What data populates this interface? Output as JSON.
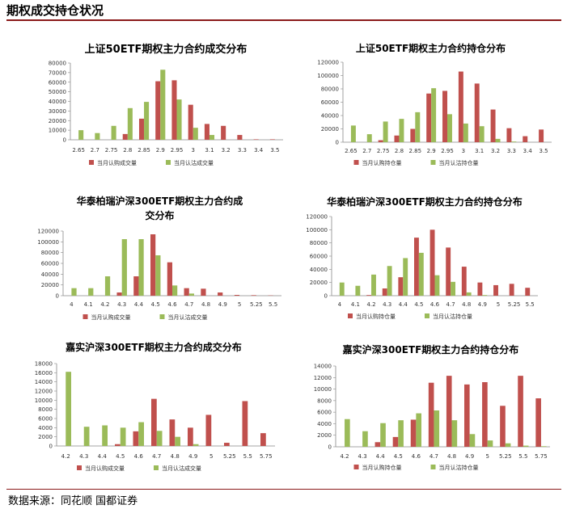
{
  "header": {
    "title": "期权成交持仓状况"
  },
  "footer": {
    "source": "数据来源：同花顺  国都证券"
  },
  "colors": {
    "call": "#c0504d",
    "put": "#9bbb59",
    "accent": "#8b1a1a"
  },
  "chart_data": [
    {
      "type": "bar",
      "title": "上证50ETF期权主力合约成交分布",
      "categories": [
        "2.65",
        "2.7",
        "2.75",
        "2.8",
        "2.85",
        "2.9",
        "2.95",
        "3",
        "3.1",
        "3.2",
        "3.3",
        "3.4",
        "3.5"
      ],
      "ylim": [
        0,
        80000
      ],
      "yticks": [
        0,
        10000,
        20000,
        30000,
        40000,
        50000,
        60000,
        70000,
        80000
      ],
      "series": [
        {
          "name": "当月认购成交量",
          "values": [
            0,
            0,
            0,
            6000,
            22000,
            61000,
            62000,
            36500,
            16500,
            14500,
            5000,
            500,
            500
          ]
        },
        {
          "name": "当月认沽成交量",
          "values": [
            10000,
            7000,
            14500,
            33000,
            39500,
            73000,
            42000,
            12500,
            5000,
            0,
            0,
            0,
            0
          ]
        }
      ]
    },
    {
      "type": "bar",
      "title": "上证50ETF期权主力合约持仓分布",
      "categories": [
        "2.65",
        "2.7",
        "2.75",
        "2.8",
        "2.85",
        "2.9",
        "2.95",
        "3",
        "3.1",
        "3.2",
        "3.3",
        "3.4",
        "3.5"
      ],
      "ylim": [
        0,
        120000
      ],
      "yticks": [
        0,
        20000,
        40000,
        60000,
        80000,
        100000,
        120000
      ],
      "series": [
        {
          "name": "当月认购持仓量",
          "values": [
            0,
            0,
            3000,
            10000,
            20000,
            73000,
            77000,
            106000,
            88000,
            49000,
            21000,
            9000,
            19000
          ]
        },
        {
          "name": "当月认沽持仓量",
          "values": [
            25000,
            12000,
            31000,
            35000,
            45000,
            81000,
            42000,
            28000,
            24000,
            5000,
            1000,
            0,
            0
          ]
        }
      ]
    },
    {
      "type": "bar",
      "title": "华泰柏瑞沪深300ETF期权主力合约成交分布",
      "title_lines": [
        "华泰柏瑞沪深300ETF期权主力合约成",
        "交分布"
      ],
      "categories": [
        "4",
        "4.1",
        "4.2",
        "4.3",
        "4.4",
        "4.5",
        "4.6",
        "4.7",
        "4.8",
        "4.9",
        "5",
        "5.25",
        "5.5"
      ],
      "ylim": [
        0,
        120000
      ],
      "yticks": [
        0,
        20000,
        40000,
        60000,
        80000,
        100000,
        120000
      ],
      "series": [
        {
          "name": "当月认购成交量",
          "values": [
            0,
            0,
            0,
            6000,
            36000,
            114000,
            62000,
            14000,
            13000,
            6000,
            1500,
            1000,
            500
          ]
        },
        {
          "name": "当月认沽成交量",
          "values": [
            14000,
            14000,
            36000,
            105000,
            105000,
            75000,
            19000,
            4000,
            0,
            0,
            0,
            0,
            0
          ]
        }
      ]
    },
    {
      "type": "bar",
      "title": "华泰柏瑞沪深300ETF期权主力合约持仓分布",
      "categories": [
        "4",
        "4.1",
        "4.2",
        "4.3",
        "4.4",
        "4.5",
        "4.6",
        "4.7",
        "4.8",
        "4.9",
        "5",
        "5.25",
        "5.5"
      ],
      "ylim": [
        0,
        120000
      ],
      "yticks": [
        0,
        20000,
        40000,
        60000,
        80000,
        100000,
        120000
      ],
      "series": [
        {
          "name": "当月认购持仓量",
          "values": [
            0,
            0,
            1000,
            11000,
            28000,
            88000,
            100000,
            73000,
            44000,
            20000,
            16000,
            18000,
            12000
          ]
        },
        {
          "name": "当月认沽持仓量",
          "values": [
            20000,
            15000,
            32000,
            45000,
            57000,
            65000,
            31000,
            21000,
            5000,
            1000,
            0,
            0,
            0
          ]
        }
      ]
    },
    {
      "type": "bar",
      "title": "嘉实沪深300ETF期权主力合约成交分布",
      "categories": [
        "4.2",
        "4.3",
        "4.4",
        "4.5",
        "4.6",
        "4.7",
        "4.8",
        "4.9",
        "5",
        "5.25",
        "5.5",
        "5.75"
      ],
      "ylim": [
        0,
        18000
      ],
      "yticks": [
        0,
        2000,
        4000,
        6000,
        8000,
        10000,
        12000,
        14000,
        16000,
        18000
      ],
      "series": [
        {
          "name": "当月认购成交量",
          "values": [
            0,
            0,
            0,
            400,
            3200,
            10300,
            5800,
            4000,
            6800,
            700,
            9800,
            2800
          ]
        },
        {
          "name": "当月认沽成交量",
          "values": [
            16200,
            4200,
            4500,
            4000,
            5200,
            3300,
            2000,
            400,
            0,
            0,
            0,
            0
          ]
        }
      ]
    },
    {
      "type": "bar",
      "title": "嘉实沪深300ETF期权主力合约持仓分布",
      "categories": [
        "4.2",
        "4.3",
        "4.4",
        "4.5",
        "4.6",
        "4.7",
        "4.8",
        "4.9",
        "5",
        "5.25",
        "5.5",
        "5.75"
      ],
      "ylim": [
        0,
        14000
      ],
      "yticks": [
        0,
        2000,
        4000,
        6000,
        8000,
        10000,
        12000,
        14000
      ],
      "series": [
        {
          "name": "当月认购持仓量",
          "values": [
            0,
            0,
            800,
            1700,
            4700,
            11100,
            12300,
            10800,
            11200,
            7100,
            12300,
            8400
          ]
        },
        {
          "name": "当月认沽持仓量",
          "values": [
            4800,
            2700,
            4100,
            4600,
            5800,
            6300,
            4600,
            2200,
            1100,
            600,
            200,
            100
          ]
        }
      ]
    }
  ]
}
